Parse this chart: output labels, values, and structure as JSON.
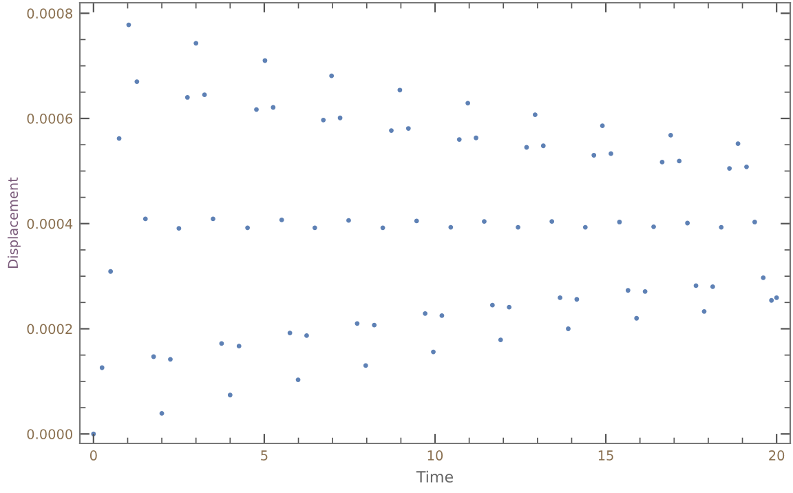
{
  "chart_data": {
    "type": "scatter",
    "xlabel": "Time",
    "ylabel": "Displacement",
    "xlim": [
      -0.4,
      20.4
    ],
    "ylim": [
      -1.8e-05,
      0.00082
    ],
    "xticks": [
      0,
      5,
      10,
      15,
      20
    ],
    "yticks": [
      {
        "value": 0,
        "label": "0.0000"
      },
      {
        "value": 0.0002,
        "label": "0.0002"
      },
      {
        "value": 0.0004,
        "label": "0.0004"
      },
      {
        "value": 0.0006,
        "label": "0.0006"
      },
      {
        "value": 0.0008,
        "label": "0.0008"
      }
    ],
    "grid": false,
    "marker": "circle",
    "series": [
      {
        "color": "#5e81b5",
        "x": [
          0,
          0.25,
          0.5,
          0.75,
          1.03,
          1.27,
          1.52,
          1.76,
          2.0,
          2.25,
          2.5,
          2.75,
          3.0,
          3.25,
          3.5,
          3.75,
          4.0,
          4.26,
          4.51,
          4.77,
          5.02,
          5.26,
          5.51,
          5.75,
          5.99,
          6.24,
          6.48,
          6.73,
          6.97,
          7.22,
          7.47,
          7.72,
          7.97,
          8.22,
          8.47,
          8.72,
          8.97,
          9.22,
          9.46,
          9.71,
          9.95,
          10.2,
          10.46,
          10.71,
          10.96,
          11.2,
          11.44,
          11.68,
          11.92,
          12.17,
          12.43,
          12.68,
          12.93,
          13.17,
          13.42,
          13.66,
          13.9,
          14.15,
          14.4,
          14.65,
          14.9,
          15.15,
          15.4,
          15.65,
          15.9,
          16.15,
          16.4,
          16.65,
          16.9,
          17.15,
          17.39,
          17.64,
          17.88,
          18.13,
          18.38,
          18.62,
          18.87,
          19.12,
          19.36,
          19.61,
          19.85,
          20
        ],
        "values": [
          0,
          0.000126,
          0.000309,
          0.000562,
          0.000778,
          0.00067,
          0.000409,
          0.000147,
          3.9e-05,
          0.000142,
          0.000391,
          0.00064,
          0.000743,
          0.000645,
          0.000409,
          0.000172,
          7.4e-05,
          0.000167,
          0.000392,
          0.000617,
          0.00071,
          0.000621,
          0.000407,
          0.000192,
          0.000103,
          0.000187,
          0.000392,
          0.000597,
          0.000681,
          0.000601,
          0.000406,
          0.00021,
          0.00013,
          0.000207,
          0.000392,
          0.000577,
          0.000654,
          0.000581,
          0.000405,
          0.000229,
          0.000156,
          0.000225,
          0.000393,
          0.00056,
          0.000629,
          0.000563,
          0.000404,
          0.000245,
          0.000179,
          0.000241,
          0.000393,
          0.000545,
          0.000607,
          0.000548,
          0.000404,
          0.000259,
          0.0002,
          0.000256,
          0.000393,
          0.00053,
          0.000586,
          0.000533,
          0.000403,
          0.000273,
          0.00022,
          0.000271,
          0.000394,
          0.000517,
          0.000568,
          0.000519,
          0.000401,
          0.000282,
          0.000233,
          0.00028,
          0.000393,
          0.000505,
          0.000552,
          0.000508,
          0.000403,
          0.000297,
          0.000254,
          0.000259
        ]
      }
    ]
  }
}
